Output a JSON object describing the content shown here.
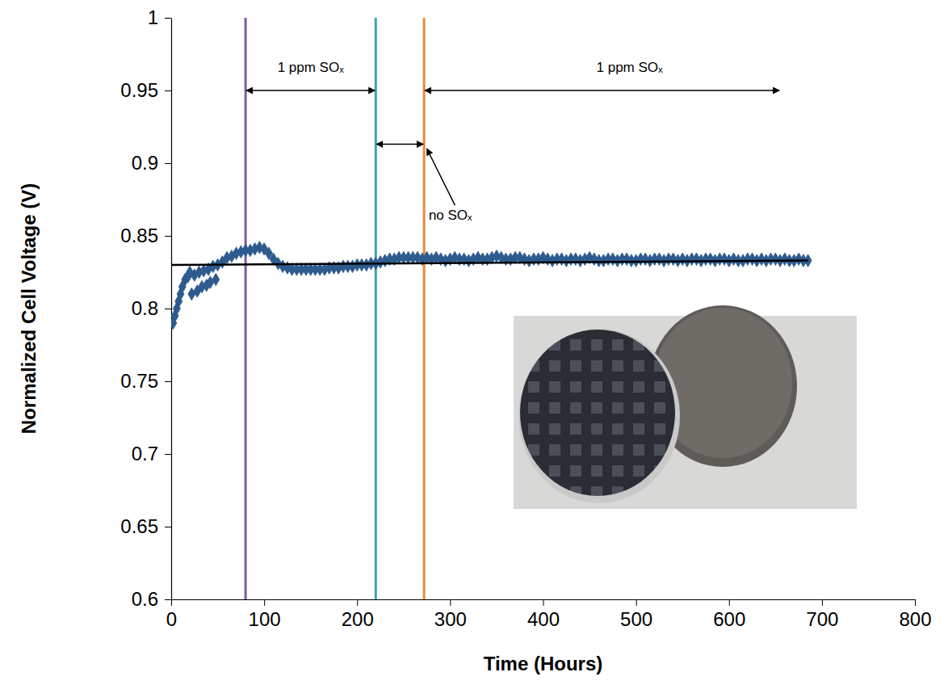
{
  "chart_data": {
    "type": "scatter",
    "x_label": "Time (Hours)",
    "y_label": "Normalized Cell Voltage (V)",
    "xlim": [
      0,
      800
    ],
    "xticks": [
      0,
      100,
      200,
      300,
      400,
      500,
      600,
      700,
      800
    ],
    "ylim": [
      0.6,
      1
    ],
    "yticks": [
      0.6,
      0.65,
      0.7,
      0.75,
      0.8,
      0.85,
      0.9,
      0.95,
      1
    ],
    "grid": false,
    "series": [
      {
        "type": "scatter",
        "marker": "diamond",
        "color": "#2e5b8e",
        "x": [
          2,
          4,
          6,
          8,
          10,
          12,
          15,
          18,
          20,
          22,
          25,
          28,
          30,
          33,
          35,
          38,
          40,
          42,
          45,
          48,
          50,
          55,
          60,
          65,
          70,
          75,
          80,
          85,
          90,
          95,
          100,
          105,
          110,
          115,
          120,
          125,
          130,
          135,
          140,
          145,
          150,
          155,
          160,
          165,
          170,
          175,
          180,
          185,
          190,
          195,
          200,
          205,
          210,
          215,
          220,
          225,
          230,
          235,
          240,
          245,
          250,
          255,
          260,
          265,
          270,
          275,
          280,
          285,
          290,
          295,
          300,
          305,
          310,
          315,
          320,
          325,
          330,
          335,
          340,
          345,
          350,
          355,
          360,
          365,
          370,
          375,
          380,
          385,
          390,
          395,
          400,
          405,
          410,
          415,
          420,
          425,
          430,
          435,
          440,
          445,
          450,
          455,
          460,
          465,
          470,
          475,
          480,
          485,
          490,
          495,
          500,
          505,
          510,
          515,
          520,
          525,
          530,
          535,
          540,
          545,
          550,
          555,
          560,
          565,
          570,
          575,
          580,
          585,
          590,
          595,
          600,
          605,
          610,
          615,
          620,
          625,
          630,
          635,
          640,
          645,
          650,
          655,
          660,
          665,
          670,
          675,
          680,
          685
        ],
        "values": [
          0.79,
          0.795,
          0.8,
          0.805,
          0.81,
          0.815,
          0.82,
          0.822,
          0.825,
          0.81,
          0.823,
          0.812,
          0.825,
          0.815,
          0.826,
          0.816,
          0.827,
          0.818,
          0.829,
          0.82,
          0.83,
          0.832,
          0.835,
          0.836,
          0.838,
          0.839,
          0.84,
          0.84,
          0.841,
          0.842,
          0.841,
          0.838,
          0.834,
          0.831,
          0.829,
          0.828,
          0.827,
          0.827,
          0.827,
          0.827,
          0.827,
          0.827,
          0.827,
          0.827,
          0.828,
          0.828,
          0.828,
          0.829,
          0.829,
          0.829,
          0.83,
          0.83,
          0.83,
          0.831,
          0.831,
          0.832,
          0.833,
          0.834,
          0.834,
          0.835,
          0.835,
          0.835,
          0.835,
          0.835,
          0.834,
          0.835,
          0.834,
          0.835,
          0.834,
          0.833,
          0.834,
          0.835,
          0.834,
          0.834,
          0.833,
          0.834,
          0.835,
          0.834,
          0.834,
          0.835,
          0.836,
          0.835,
          0.834,
          0.834,
          0.835,
          0.835,
          0.834,
          0.833,
          0.834,
          0.834,
          0.835,
          0.834,
          0.833,
          0.834,
          0.834,
          0.833,
          0.834,
          0.834,
          0.833,
          0.834,
          0.835,
          0.834,
          0.833,
          0.833,
          0.834,
          0.834,
          0.833,
          0.834,
          0.834,
          0.833,
          0.833,
          0.834,
          0.834,
          0.833,
          0.834,
          0.834,
          0.833,
          0.834,
          0.834,
          0.833,
          0.834,
          0.833,
          0.834,
          0.834,
          0.833,
          0.834,
          0.834,
          0.833,
          0.834,
          0.834,
          0.833,
          0.834,
          0.833,
          0.833,
          0.834,
          0.834,
          0.833,
          0.834,
          0.833,
          0.834,
          0.834,
          0.833,
          0.834,
          0.833,
          0.833,
          0.834,
          0.833,
          0.833
        ]
      },
      {
        "type": "line",
        "line_style": "solid",
        "color": "#000000",
        "x": [
          0,
          685
        ],
        "values": [
          0.83,
          0.833
        ]
      }
    ],
    "vlines": [
      {
        "x": 80,
        "color": "#7d5ba6"
      },
      {
        "x": 220,
        "color": "#3aa2b5"
      },
      {
        "x": 272,
        "color": "#e8893c"
      }
    ],
    "annotations": [
      {
        "text": "1 ppm SOₓ",
        "x": [
          80,
          220
        ],
        "y": 0.95,
        "text_at": [
          150,
          0.963
        ]
      },
      {
        "text": "no SOₓ",
        "x": [
          220,
          272
        ],
        "y": 0.913,
        "text_at": [
          277,
          0.861
        ],
        "pointer_to": [
          275,
          0.91
        ]
      },
      {
        "text": "1 ppm SOₓ",
        "x": [
          272,
          655
        ],
        "y": 0.95,
        "text_at": [
          493,
          0.963
        ]
      }
    ]
  }
}
